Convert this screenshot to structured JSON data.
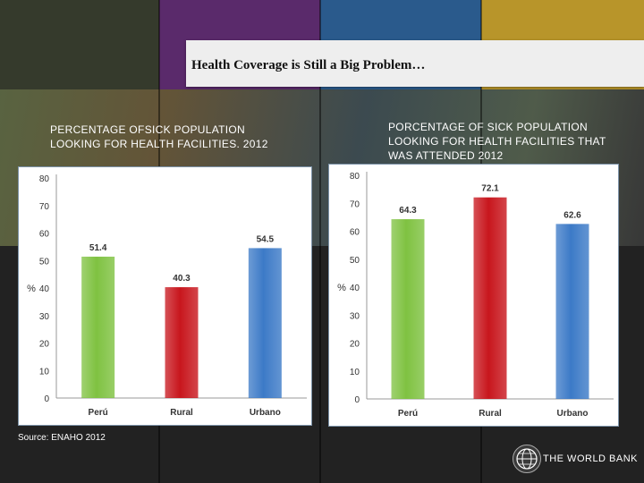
{
  "slide_title": "Health Coverage is Still a Big Problem…",
  "source": "Source: ENAHO 2012",
  "logo_text": "THE WORLD BANK",
  "colors": {
    "band1": "#353a2c",
    "band2": "#5a2a6b",
    "band3": "#2a5a8c",
    "band4": "#b8952a"
  },
  "chart_data": [
    {
      "type": "bar",
      "title_lines": [
        "PERCENTAGE OFSICK POPULATION",
        "LOOKING FOR HEALTH FACILITIES. 2012"
      ],
      "categories": [
        "Perú",
        "Rural",
        "Urbano"
      ],
      "values": [
        51.4,
        40.3,
        54.5
      ],
      "value_labels": [
        "51.4",
        "40.3",
        "54.5"
      ],
      "ylabel": "%",
      "yticks": [
        "0",
        "10",
        "20",
        "30",
        "40",
        "50",
        "60",
        "70",
        "80"
      ],
      "ylim": [
        0,
        80
      ],
      "bar_colors": [
        "#7fc241",
        "#c8161d",
        "#3c7ac7"
      ]
    },
    {
      "type": "bar",
      "title_lines": [
        "PORCENTAGE OF  SICK POPULATION",
        "LOOKING FOR HEALTH FACILITIES THAT",
        "WAS ATTENDED  2012"
      ],
      "categories": [
        "Perú",
        "Rural",
        "Urbano"
      ],
      "values": [
        64.3,
        72.1,
        62.6
      ],
      "value_labels": [
        "64.3",
        "72.1",
        "62.6"
      ],
      "ylabel": "%",
      "yticks": [
        "0",
        "10",
        "20",
        "30",
        "40",
        "50",
        "60",
        "70",
        "80"
      ],
      "ylim": [
        0,
        80
      ],
      "bar_colors": [
        "#7fc241",
        "#c8161d",
        "#3c7ac7"
      ]
    }
  ]
}
